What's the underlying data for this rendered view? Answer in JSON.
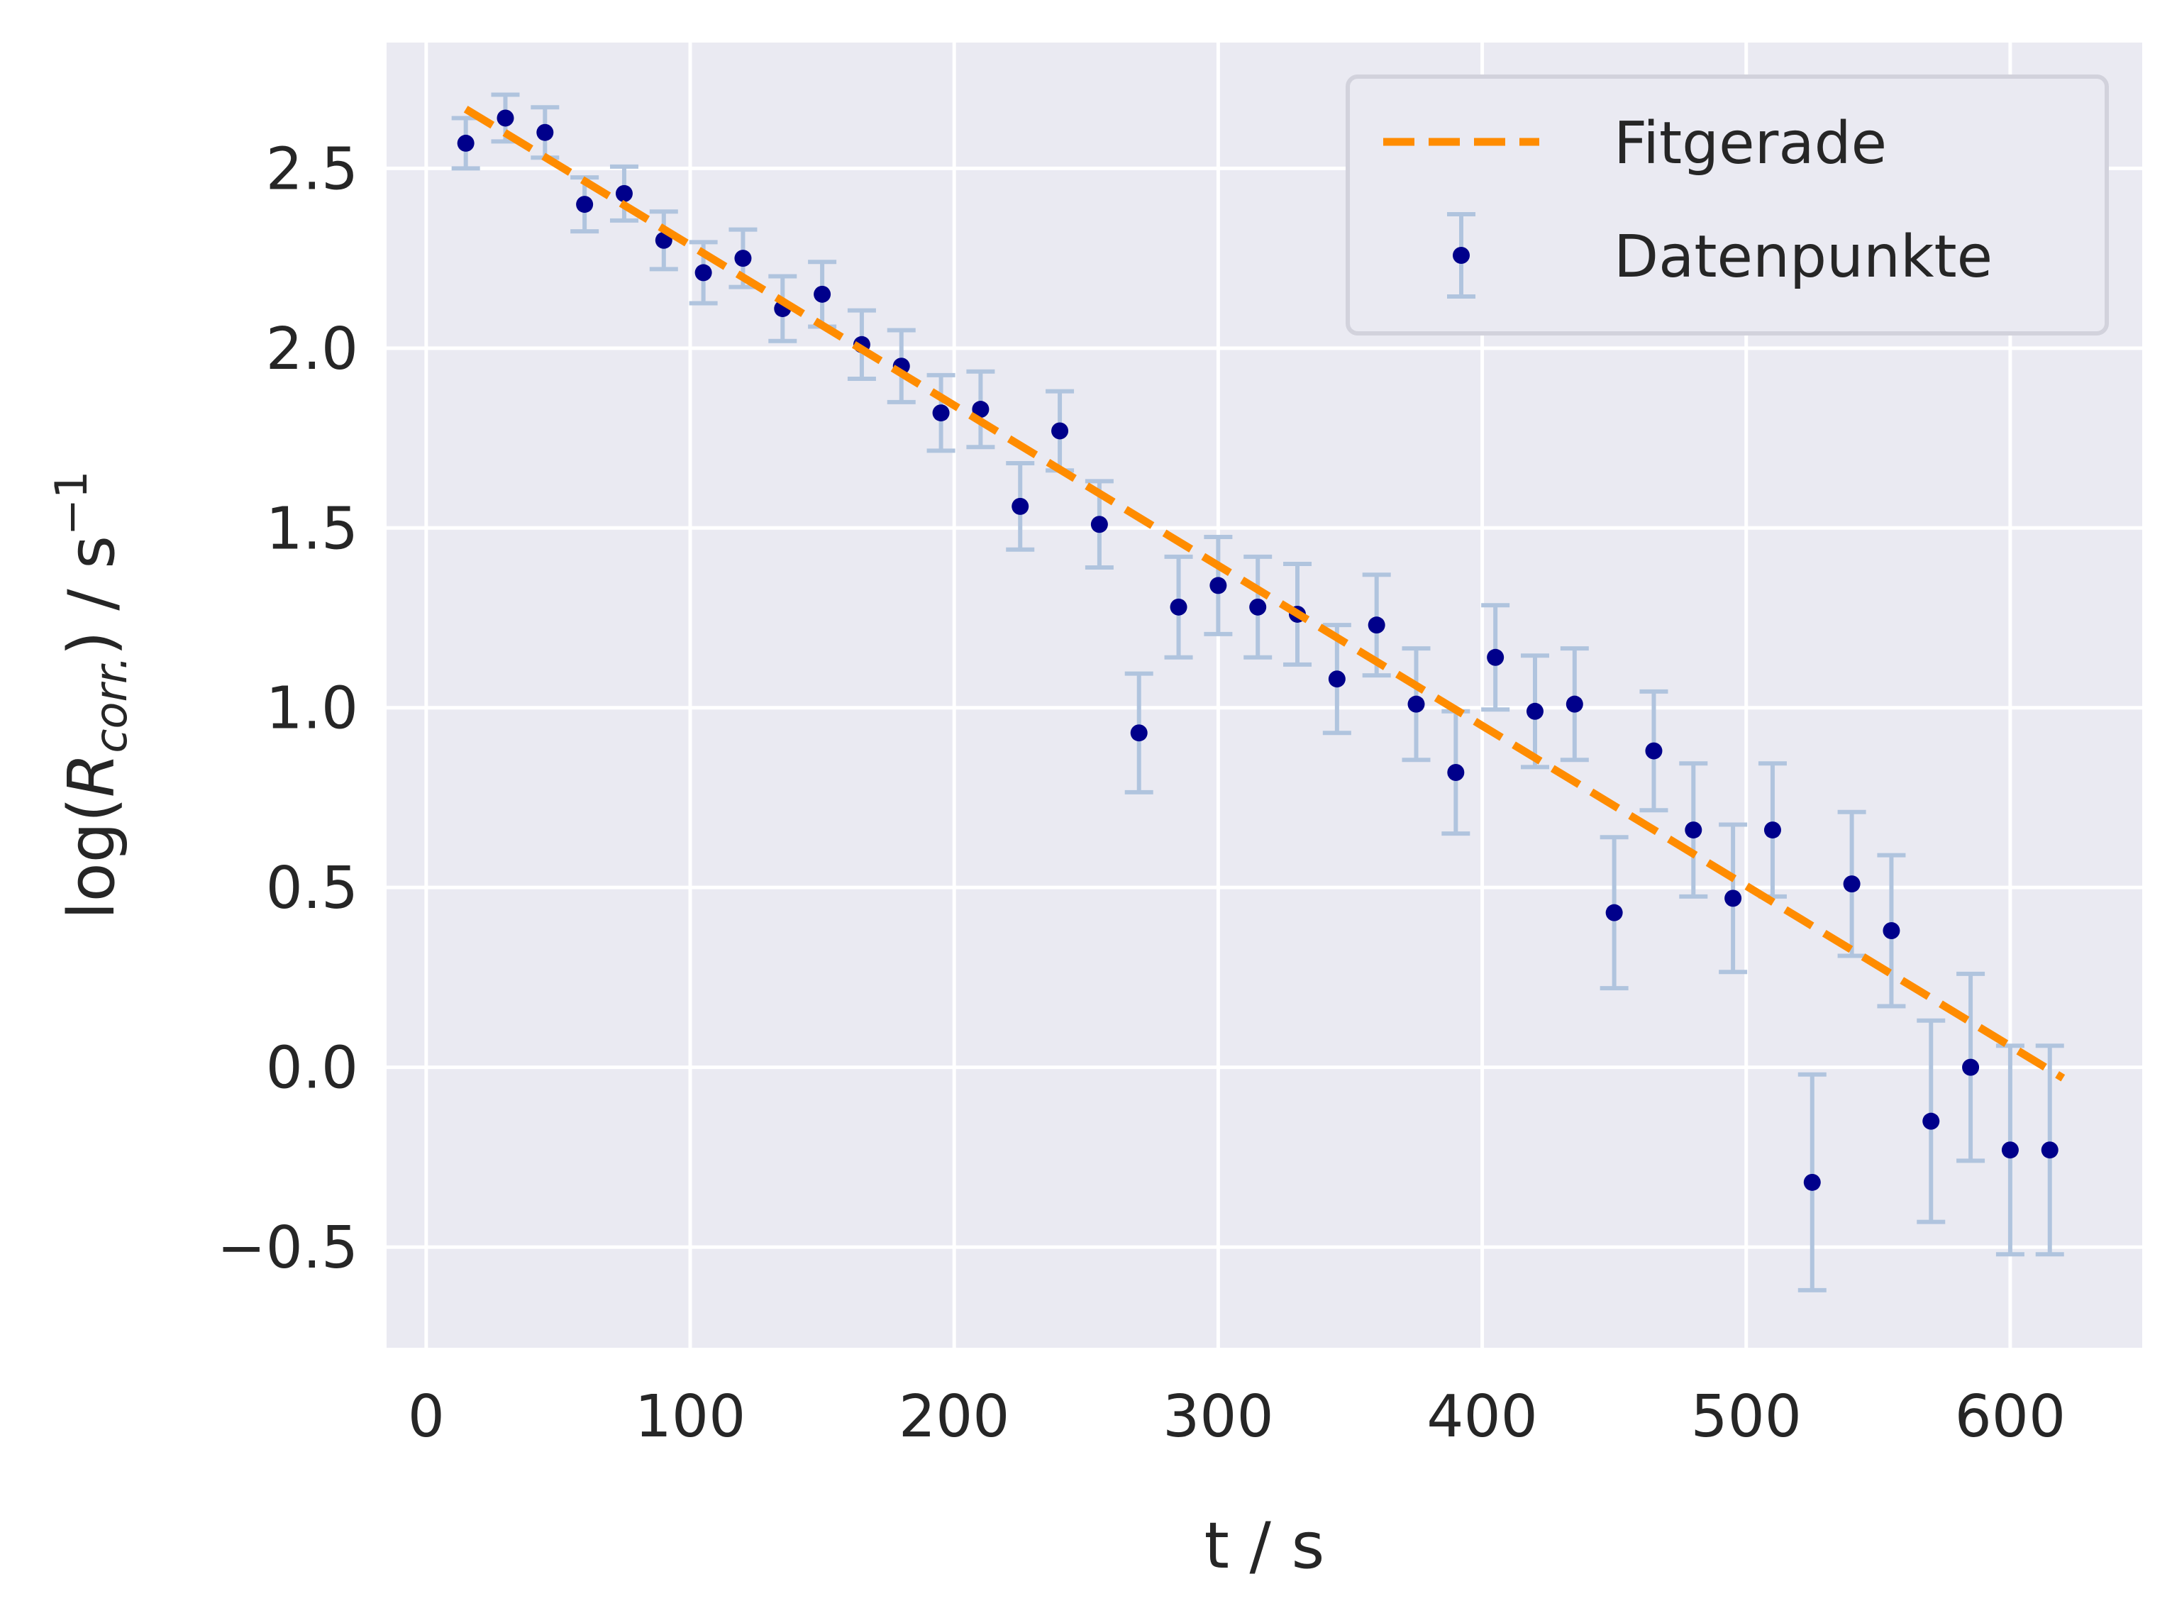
{
  "chart_data": {
    "type": "scatter",
    "xlabel": "t / s",
    "ylabel": {
      "prefix": "log(",
      "var": "R",
      "sub": "corr.",
      "suffix": ") / s",
      "sup": "−1"
    },
    "xlim": [
      -15,
      650
    ],
    "ylim": [
      -0.78,
      2.85
    ],
    "xticks": [
      0,
      100,
      200,
      300,
      400,
      500,
      600
    ],
    "xtick_labels": [
      "0",
      "100",
      "200",
      "300",
      "400",
      "500",
      "600"
    ],
    "yticks": [
      -0.5,
      0.0,
      0.5,
      1.0,
      1.5,
      2.0,
      2.5
    ],
    "ytick_labels": [
      "−0.5",
      "0.0",
      "0.5",
      "1.0",
      "1.5",
      "2.0",
      "2.5"
    ],
    "grid": true,
    "legend": "top-right",
    "colors": {
      "background": "#eaeaf2",
      "grid": "#ffffff",
      "points": "#00008b",
      "errorbars": "#b0c4de",
      "fit": "#ff8c00"
    },
    "fit_line": {
      "name": "Fitgerade",
      "x": [
        15,
        620
      ],
      "y": [
        2.665,
        -0.03
      ]
    },
    "series": [
      {
        "name": "Datenpunkte",
        "x": [
          15,
          30,
          45,
          60,
          75,
          90,
          105,
          120,
          135,
          150,
          165,
          180,
          195,
          210,
          225,
          240,
          255,
          270,
          285,
          300,
          315,
          330,
          345,
          360,
          375,
          390,
          405,
          420,
          435,
          450,
          465,
          480,
          495,
          510,
          525,
          540,
          555,
          570,
          585,
          600,
          615
        ],
        "y": [
          2.57,
          2.64,
          2.6,
          2.4,
          2.43,
          2.3,
          2.21,
          2.25,
          2.11,
          2.15,
          2.01,
          1.95,
          1.82,
          1.83,
          1.56,
          1.77,
          1.51,
          0.93,
          1.28,
          1.34,
          1.28,
          1.26,
          1.08,
          1.23,
          1.01,
          0.82,
          1.14,
          0.99,
          1.01,
          0.43,
          0.88,
          0.66,
          0.47,
          0.66,
          -0.32,
          0.51,
          0.38,
          -0.15,
          0.0,
          -0.23,
          -0.23
        ],
        "yerr": [
          0.07,
          0.065,
          0.07,
          0.075,
          0.075,
          0.08,
          0.085,
          0.08,
          0.09,
          0.09,
          0.095,
          0.1,
          0.105,
          0.105,
          0.12,
          0.11,
          0.12,
          0.165,
          0.14,
          0.135,
          0.14,
          0.14,
          0.15,
          0.14,
          0.155,
          0.17,
          0.145,
          0.155,
          0.155,
          0.21,
          0.165,
          0.185,
          0.205,
          0.185,
          0.3,
          0.2,
          0.21,
          0.28,
          0.26,
          0.29,
          0.29
        ]
      }
    ]
  }
}
